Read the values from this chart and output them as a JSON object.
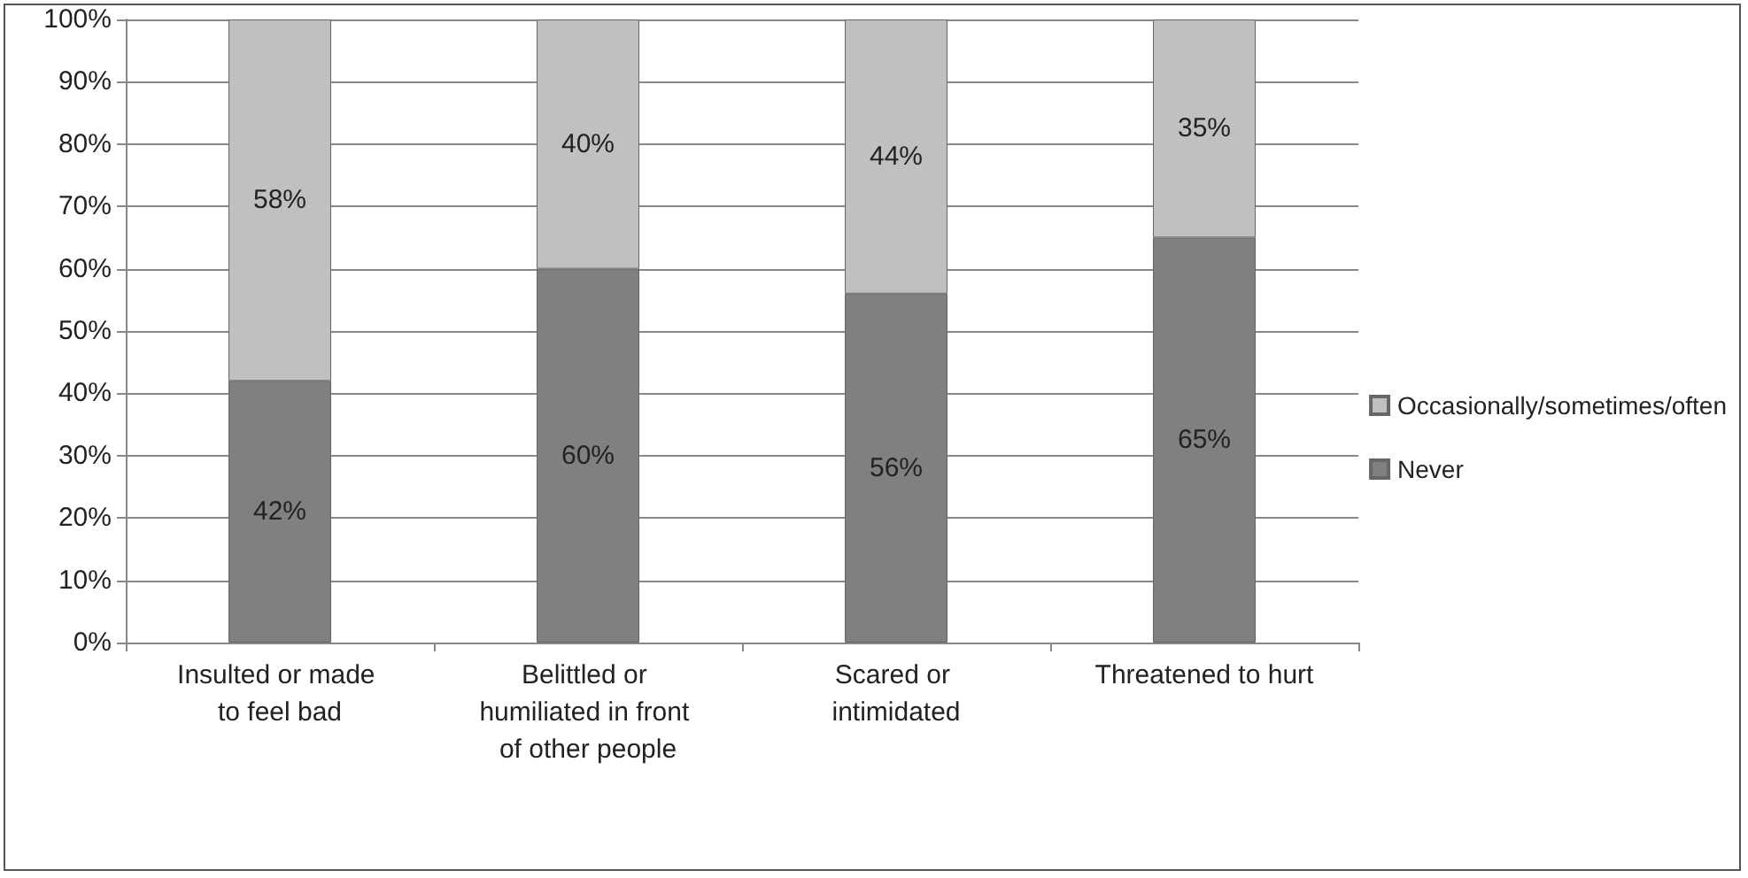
{
  "chart_data": {
    "type": "bar",
    "stacked": true,
    "categories": [
      "Insulted or made to feel bad",
      "Belittled or humiliated in front of other people",
      "Scared or intimidated",
      "Threatened to hurt"
    ],
    "series": [
      {
        "name": "Never",
        "color": "#808080",
        "values": [
          42,
          60,
          56,
          65
        ],
        "value_labels": [
          "42%",
          "60%",
          "56%",
          "65%"
        ]
      },
      {
        "name": "Occasionally/sometimes/often",
        "color": "#c0c0c0",
        "values": [
          58,
          40,
          44,
          35
        ],
        "value_labels": [
          "58%",
          "40%",
          "44%",
          "35%"
        ]
      }
    ],
    "ylim": [
      0,
      100
    ],
    "yticks": [
      {
        "value": 0,
        "label": "0%"
      },
      {
        "value": 10,
        "label": "10%"
      },
      {
        "value": 20,
        "label": "20%"
      },
      {
        "value": 30,
        "label": "30%"
      },
      {
        "value": 40,
        "label": "40%"
      },
      {
        "value": 50,
        "label": "50%"
      },
      {
        "value": 60,
        "label": "60%"
      },
      {
        "value": 70,
        "label": "70%"
      },
      {
        "value": 80,
        "label": "80%"
      },
      {
        "value": 90,
        "label": "90%"
      },
      {
        "value": 100,
        "label": "100%"
      }
    ],
    "grid": "y",
    "legend": "right"
  }
}
